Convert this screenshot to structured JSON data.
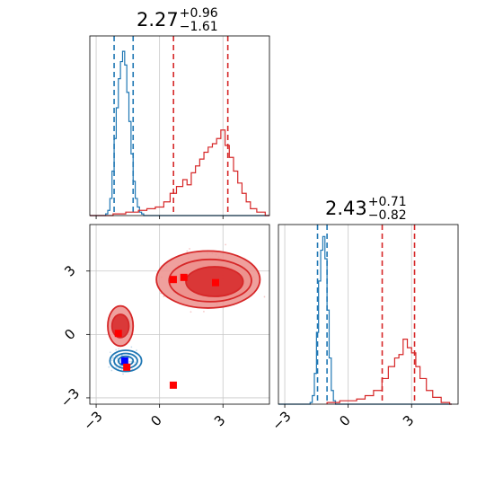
{
  "chart_data": {
    "type": "corner",
    "parameters": [
      "",
      ""
    ],
    "panel_titles": [
      {
        "value": "2.27",
        "upper": "+0.96",
        "lower": "−1.61"
      },
      {
        "value": "2.43",
        "upper": "+0.71",
        "lower": "−0.82"
      }
    ],
    "axis": {
      "xlim": [
        -3.3,
        5.2
      ],
      "ylim": [
        -3.3,
        5.2
      ],
      "ticks": [
        -3,
        0,
        3
      ],
      "tick_labels": [
        "−3",
        "0",
        "3"
      ],
      "grid": true
    },
    "colors": {
      "blue": "#1f77b4",
      "red": "#d62728",
      "red_fill_mid": "#ec8f8c",
      "red_fill_core": "#d62728",
      "grid": "#c8c8c8"
    },
    "series": [
      {
        "name": "",
        "color": "#1f77b4",
        "quantiles_param1": [
          -2.15,
          -1.25
        ],
        "quantiles_param2": [
          -1.45,
          -1.0
        ],
        "hist_param1": {
          "bins": [
            [
              -3.3,
              0
            ],
            [
              -2.55,
              0.01
            ],
            [
              -2.45,
              0.03
            ],
            [
              -2.35,
              0.1
            ],
            [
              -2.25,
              0.26
            ],
            [
              -2.15,
              0.45
            ],
            [
              -2.05,
              0.63
            ],
            [
              -1.95,
              0.8
            ],
            [
              -1.85,
              0.9
            ],
            [
              -1.75,
              0.96
            ],
            [
              -1.65,
              0.88
            ],
            [
              -1.55,
              0.72
            ],
            [
              -1.45,
              0.55
            ],
            [
              -1.35,
              0.36
            ],
            [
              -1.25,
              0.2
            ],
            [
              -1.15,
              0.1
            ],
            [
              -1.05,
              0.05
            ],
            [
              -0.95,
              0.02
            ],
            [
              -0.85,
              0.01
            ],
            [
              -0.75,
              0
            ]
          ]
        },
        "hist_param2": {
          "bins": [
            [
              -3.3,
              0
            ],
            [
              -1.8,
              0.01
            ],
            [
              -1.7,
              0.05
            ],
            [
              -1.6,
              0.18
            ],
            [
              -1.5,
              0.42
            ],
            [
              -1.4,
              0.72
            ],
            [
              -1.3,
              0.9
            ],
            [
              -1.2,
              0.98
            ],
            [
              -1.1,
              0.85
            ],
            [
              -1.0,
              0.55
            ],
            [
              -0.9,
              0.27
            ],
            [
              -0.8,
              0.08
            ],
            [
              -0.7,
              0.02
            ],
            [
              -0.6,
              0
            ]
          ]
        },
        "contours_2d": [
          {
            "cx": -1.6,
            "cy": -1.25,
            "rx": 0.75,
            "ry": 0.5
          },
          {
            "cx": -1.6,
            "cy": -1.25,
            "rx": 0.55,
            "ry": 0.35
          },
          {
            "cx": -1.6,
            "cy": -1.25,
            "rx": 0.35,
            "ry": 0.22
          }
        ],
        "markers": [
          {
            "x": -1.65,
            "y": -1.25
          }
        ]
      },
      {
        "name": "",
        "color": "#d62728",
        "quantiles_param1": [
          0.66,
          3.23
        ],
        "quantiles_param2": [
          1.61,
          3.14
        ],
        "hist_param1": {
          "bins": [
            [
              -3.3,
              0
            ],
            [
              -2.2,
              0.01
            ],
            [
              -1.6,
              0.02
            ],
            [
              -1.0,
              0.03
            ],
            [
              -0.6,
              0.04
            ],
            [
              -0.2,
              0.05
            ],
            [
              0.2,
              0.08
            ],
            [
              0.5,
              0.13
            ],
            [
              0.8,
              0.17
            ],
            [
              1.1,
              0.21
            ],
            [
              1.3,
              0.18
            ],
            [
              1.5,
              0.25
            ],
            [
              1.7,
              0.29
            ],
            [
              1.9,
              0.33
            ],
            [
              2.1,
              0.37
            ],
            [
              2.3,
              0.4
            ],
            [
              2.5,
              0.42
            ],
            [
              2.7,
              0.45
            ],
            [
              2.9,
              0.5
            ],
            [
              3.1,
              0.41
            ],
            [
              3.3,
              0.34
            ],
            [
              3.5,
              0.26
            ],
            [
              3.7,
              0.19
            ],
            [
              3.9,
              0.13
            ],
            [
              4.1,
              0.08
            ],
            [
              4.3,
              0.04
            ],
            [
              4.6,
              0.02
            ],
            [
              5.0,
              0
            ]
          ]
        },
        "hist_param2": {
          "bins": [
            [
              -1.0,
              0.01
            ],
            [
              -0.4,
              0.02
            ],
            [
              0.4,
              0.03
            ],
            [
              0.8,
              0.05
            ],
            [
              1.2,
              0.08
            ],
            [
              1.6,
              0.15
            ],
            [
              1.9,
              0.22
            ],
            [
              2.2,
              0.27
            ],
            [
              2.4,
              0.29
            ],
            [
              2.6,
              0.38
            ],
            [
              2.8,
              0.33
            ],
            [
              3.0,
              0.3
            ],
            [
              3.2,
              0.22
            ],
            [
              3.4,
              0.15
            ],
            [
              3.7,
              0.08
            ],
            [
              4.0,
              0.04
            ],
            [
              4.4,
              0.01
            ],
            [
              4.8,
              0
            ]
          ]
        },
        "contours_2d": [
          {
            "cx": 2.3,
            "cy": 2.6,
            "rx": 2.45,
            "ry": 1.35
          },
          {
            "cx": 2.4,
            "cy": 2.55,
            "rx": 1.95,
            "ry": 1.0
          },
          {
            "cx": 2.6,
            "cy": 2.5,
            "rx": 1.35,
            "ry": 0.7
          },
          {
            "cx": -1.85,
            "cy": 0.4,
            "rx": 0.6,
            "ry": 0.95
          },
          {
            "cx": -1.85,
            "cy": 0.4,
            "rx": 0.4,
            "ry": 0.55
          }
        ],
        "markers": [
          {
            "x": 0.65,
            "y": 2.6
          },
          {
            "x": 1.15,
            "y": 2.7
          },
          {
            "x": 2.65,
            "y": 2.45
          },
          {
            "x": -1.95,
            "y": 0.05
          },
          {
            "x": -1.55,
            "y": -1.55
          },
          {
            "x": 0.65,
            "y": -2.4
          }
        ]
      }
    ]
  }
}
